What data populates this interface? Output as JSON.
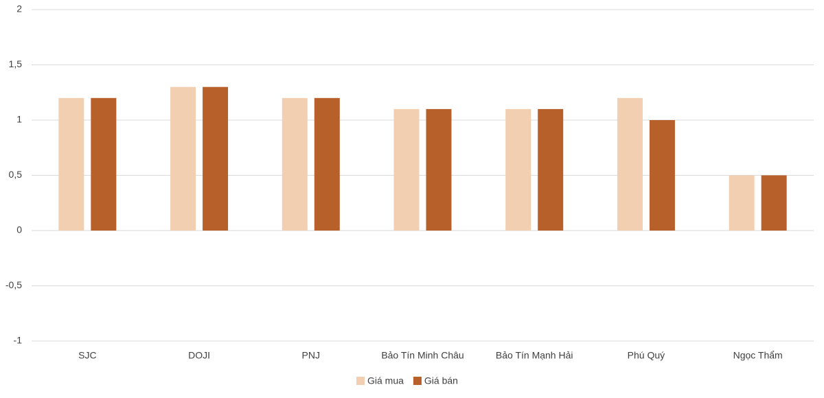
{
  "chart_data": {
    "type": "bar",
    "categories": [
      "SJC",
      "DOJI",
      "PNJ",
      "Bảo Tín Minh Châu",
      "Bảo Tín Mạnh Hải",
      "Phú Quý",
      "Ngọc Thẩm"
    ],
    "series": [
      {
        "name": "Giá mua",
        "color": "#f2cfb1",
        "values": [
          1.2,
          1.3,
          1.2,
          1.1,
          1.1,
          1.2,
          0.5
        ]
      },
      {
        "name": "Giá bán",
        "color": "#b8602a",
        "values": [
          1.2,
          1.3,
          1.2,
          1.1,
          1.1,
          1.0,
          0.5
        ]
      }
    ],
    "ylim": [
      -1,
      2
    ],
    "yticks": [
      -1,
      {
        "value": -0.5,
        "label": "-0,5"
      },
      0,
      {
        "value": 0.5,
        "label": "0,5"
      },
      1,
      {
        "value": 1.5,
        "label": "1,5"
      },
      2
    ],
    "grid": true,
    "legend": "bottom"
  }
}
